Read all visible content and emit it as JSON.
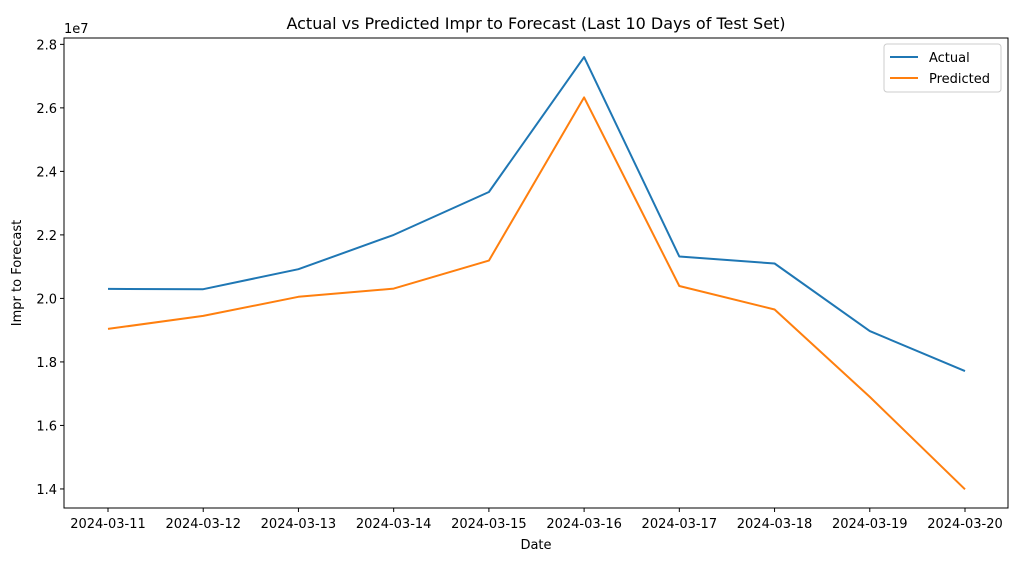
{
  "chart_data": {
    "type": "line",
    "title": "Actual vs Predicted Impr to Forecast (Last 10 Days of Test Set)",
    "xlabel": "Date",
    "ylabel": "Impr to Forecast",
    "y_offset_label": "1e7",
    "categories": [
      "2024-03-11",
      "2024-03-12",
      "2024-03-13",
      "2024-03-14",
      "2024-03-15",
      "2024-03-16",
      "2024-03-17",
      "2024-03-18",
      "2024-03-19",
      "2024-03-20"
    ],
    "ylim": [
      13400000,
      28200000
    ],
    "yticks": [
      14000000,
      16000000,
      18000000,
      20000000,
      22000000,
      24000000,
      26000000,
      28000000
    ],
    "ytick_labels": [
      "1.4",
      "1.6",
      "1.8",
      "2.0",
      "2.2",
      "2.4",
      "2.6",
      "2.8"
    ],
    "series": [
      {
        "name": "Actual",
        "color": "#1f77b4",
        "values": [
          20300000,
          20290000,
          20920000,
          22000000,
          23350000,
          27600000,
          21320000,
          21100000,
          18970000,
          17710000
        ]
      },
      {
        "name": "Predicted",
        "color": "#ff7f0e",
        "values": [
          19040000,
          19450000,
          20050000,
          20310000,
          21190000,
          26330000,
          20390000,
          19650000,
          16900000,
          13990000
        ]
      }
    ],
    "legend_position": "top-right",
    "grid": false
  }
}
